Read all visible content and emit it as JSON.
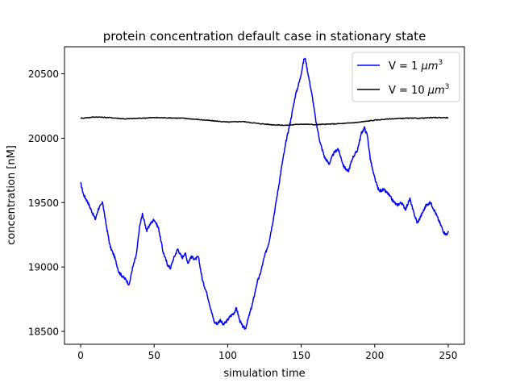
{
  "chart_data": {
    "type": "line",
    "title": "protein concentration default case in stationary state",
    "xlabel": "simulation time",
    "ylabel": "concentration [nM]",
    "xlim": [
      -11,
      261
    ],
    "ylim": [
      18400,
      20710
    ],
    "xticks": [
      0,
      50,
      100,
      150,
      200,
      250
    ],
    "yticks": [
      18500,
      19000,
      19500,
      20000,
      20500
    ],
    "grid": false,
    "legend_position": "top-right",
    "series": [
      {
        "name": "V = 1 μm³",
        "legend_main": "V = 1 ",
        "legend_unit": "μm",
        "legend_sup": "3",
        "color": "#0000ff",
        "x": [
          0,
          2,
          5,
          8,
          10,
          12,
          15,
          17,
          20,
          23,
          26,
          29,
          31,
          33,
          35,
          38,
          40,
          42,
          45,
          47,
          50,
          53,
          56,
          59,
          61,
          63,
          66,
          69,
          71,
          73,
          75,
          78,
          80,
          83,
          86,
          89,
          91,
          93,
          95,
          97,
          100,
          102,
          104,
          106,
          108,
          110,
          112,
          114,
          117,
          120,
          122,
          125,
          128,
          131,
          134,
          137,
          140,
          143,
          146,
          149,
          151,
          152,
          153,
          154,
          156,
          158,
          160,
          163,
          166,
          169,
          172,
          175,
          177,
          179,
          182,
          185,
          188,
          191,
          193,
          195,
          197,
          199,
          201,
          203,
          206,
          209,
          212,
          215,
          218,
          221,
          224,
          226,
          229,
          232,
          235,
          238,
          241,
          244,
          247,
          249,
          250
        ],
        "y": [
          19650,
          19560,
          19500,
          19420,
          19370,
          19450,
          19500,
          19350,
          19160,
          19080,
          18960,
          18920,
          18900,
          18860,
          18980,
          19100,
          19310,
          19410,
          19280,
          19330,
          19370,
          19300,
          19120,
          19020,
          18990,
          19060,
          19140,
          19070,
          19110,
          19030,
          19080,
          19060,
          19080,
          18890,
          18790,
          18650,
          18570,
          18560,
          18590,
          18550,
          18590,
          18620,
          18640,
          18680,
          18590,
          18540,
          18520,
          18600,
          18720,
          18880,
          18940,
          19080,
          19190,
          19370,
          19580,
          19800,
          19990,
          20150,
          20330,
          20450,
          20560,
          20620,
          20610,
          20540,
          20420,
          20290,
          20130,
          19960,
          19850,
          19800,
          19880,
          19920,
          19850,
          19780,
          19740,
          19850,
          19900,
          20040,
          20080,
          20020,
          19840,
          19730,
          19650,
          19590,
          19600,
          19570,
          19520,
          19480,
          19500,
          19450,
          19530,
          19440,
          19340,
          19410,
          19480,
          19500,
          19430,
          19350,
          19270,
          19250,
          19280
        ]
      },
      {
        "name": "V = 10 μm³",
        "legend_main": "V = 10 ",
        "legend_unit": "μm",
        "legend_sup": "3",
        "color": "#000000",
        "x": [
          0,
          10,
          20,
          30,
          40,
          50,
          60,
          70,
          80,
          90,
          100,
          110,
          120,
          130,
          140,
          150,
          160,
          170,
          180,
          190,
          200,
          210,
          220,
          230,
          240,
          250
        ],
        "y": [
          20155,
          20165,
          20160,
          20150,
          20155,
          20160,
          20158,
          20155,
          20145,
          20135,
          20125,
          20130,
          20115,
          20105,
          20100,
          20110,
          20105,
          20110,
          20115,
          20125,
          20140,
          20150,
          20155,
          20155,
          20160,
          20160
        ]
      }
    ]
  }
}
